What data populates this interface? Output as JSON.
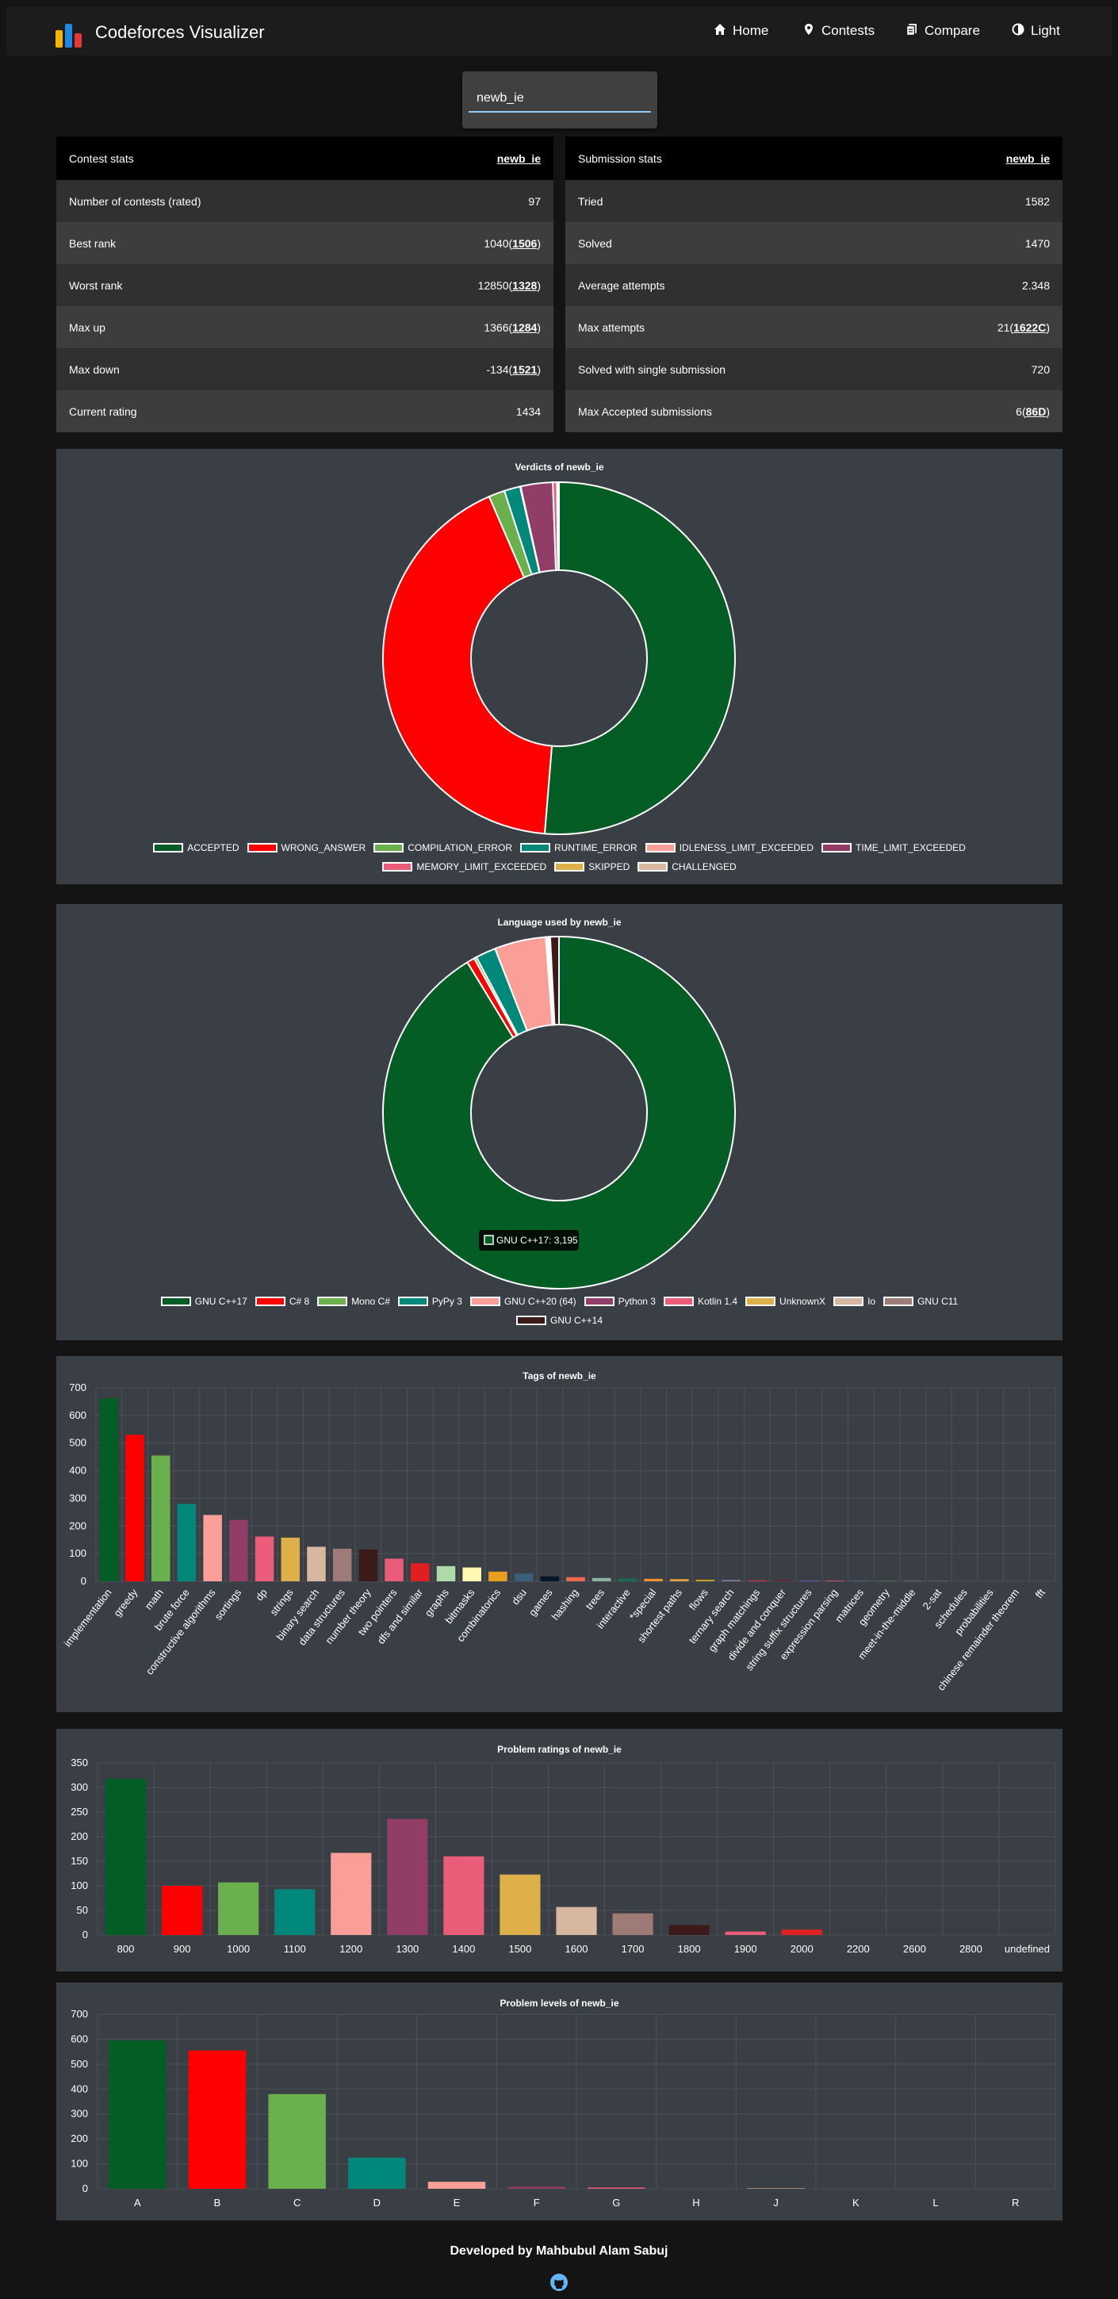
{
  "app": {
    "title": "Codeforces Visualizer"
  },
  "nav": [
    {
      "label": "Home",
      "icon": "home-icon"
    },
    {
      "label": "Contests",
      "icon": "map-pin-icon"
    },
    {
      "label": "Compare",
      "icon": "copy-icon"
    },
    {
      "label": "Light",
      "icon": "contrast-icon"
    }
  ],
  "search": {
    "value": "newb_ie"
  },
  "contest_stats": {
    "title": "Contest stats",
    "user": "newb_ie",
    "rows": [
      {
        "label": "Number of contests (rated)",
        "value": "97"
      },
      {
        "label": "Best rank",
        "value": "1040",
        "ref": "1506"
      },
      {
        "label": "Worst rank",
        "value": "12850",
        "ref": "1328"
      },
      {
        "label": "Max up",
        "value": "1366",
        "ref": "1284"
      },
      {
        "label": "Max down",
        "value": "-134",
        "ref": "1521"
      },
      {
        "label": "Current rating",
        "value": "1434"
      }
    ]
  },
  "submission_stats": {
    "title": "Submission stats",
    "user": "newb_ie",
    "rows": [
      {
        "label": "Tried",
        "value": "1582"
      },
      {
        "label": "Solved",
        "value": "1470"
      },
      {
        "label": "Average attempts",
        "value": "2.348"
      },
      {
        "label": "Max attempts",
        "value": "21",
        "ref": "1622C"
      },
      {
        "label": "Solved with single submission",
        "value": "720"
      },
      {
        "label": "Max Accepted submissions",
        "value": "6",
        "ref": "86D"
      }
    ]
  },
  "colors": {
    "green": "#045d24",
    "red": "#ff0000",
    "lightgreen": "#6ab04c",
    "teal": "#00897b",
    "salmon": "#fa9f98",
    "plum": "#913d67",
    "pink": "#ea5c77",
    "gold": "#ddb04a",
    "tan": "#d8b7a0",
    "mauve": "#9e7b76",
    "darkbrown": "#3d1a1a"
  },
  "verdicts_chart": {
    "type": "pie",
    "title": "Verdicts of newb_ie",
    "labels": [
      "ACCEPTED",
      "WRONG_ANSWER",
      "COMPILATION_ERROR",
      "RUNTIME_ERROR",
      "IDLENESS_LIMIT_EXCEEDED",
      "TIME_LIMIT_EXCEEDED",
      "MEMORY_LIMIT_EXCEEDED",
      "SKIPPED",
      "CHALLENGED"
    ],
    "values": [
      1920,
      1580,
      55,
      55,
      2,
      110,
      14,
      2,
      5
    ],
    "colors": [
      "#045d24",
      "#ff0000",
      "#6ab04c",
      "#00897b",
      "#fa9f98",
      "#913d67",
      "#ea5c77",
      "#ddb04a",
      "#d8b7a0"
    ]
  },
  "language_chart": {
    "type": "pie",
    "title": "Language used by newb_ie",
    "labels": [
      "GNU C++17",
      "C# 8",
      "Mono C#",
      "PyPy 3",
      "GNU C++20 (64)",
      "Python 3",
      "Kotlin 1.4",
      "UnknownX",
      "Io",
      "GNU C11",
      "GNU C++14"
    ],
    "values": [
      3195,
      25,
      8,
      65,
      165,
      4,
      3,
      2,
      2,
      3,
      28
    ],
    "colors": [
      "#045d24",
      "#ff0000",
      "#6ab04c",
      "#00897b",
      "#fa9f98",
      "#913d67",
      "#ea5c77",
      "#ddb04a",
      "#d8b7a0",
      "#9e7b76",
      "#3d1a1a"
    ],
    "tooltip": "GNU C++17: 3,195"
  },
  "tags_chart": {
    "type": "bar",
    "title": "Tags of newb_ie",
    "categories": [
      "implementation",
      "greedy",
      "math",
      "brute force",
      "constructive algorithms",
      "sortings",
      "dp",
      "strings",
      "binary search",
      "data structures",
      "number theory",
      "two pointers",
      "dfs and similar",
      "graphs",
      "bitmasks",
      "combinatorics",
      "dsu",
      "games",
      "hashing",
      "trees",
      "interactive",
      "*special",
      "shortest paths",
      "flows",
      "ternary search",
      "graph matchings",
      "divide and conquer",
      "string suffix structures",
      "expression parsing",
      "matrices",
      "geometry",
      "meet-in-the-middle",
      "2-sat",
      "schedules",
      "probabilities",
      "chinese remainder theorem",
      "fft"
    ],
    "values": [
      662,
      530,
      455,
      280,
      240,
      222,
      162,
      158,
      125,
      118,
      115,
      82,
      65,
      55,
      50,
      35,
      28,
      18,
      15,
      12,
      10,
      9,
      8,
      6,
      5,
      4,
      4,
      3,
      3,
      2,
      2,
      2,
      1,
      0,
      0,
      0,
      0
    ],
    "colors": [
      "#045d24",
      "#ff0000",
      "#6ab04c",
      "#00897b",
      "#fa9f98",
      "#913d67",
      "#ea5c77",
      "#ddb04a",
      "#d8b7a0",
      "#9e7b76",
      "#3d1a1a",
      "#ea5c77",
      "#e02020",
      "#aed9a8",
      "#fff8b0",
      "#e8a020",
      "#3a5f7a",
      "#06162a",
      "#f06a50",
      "#8fb0a0",
      "#1a6a50",
      "#f09030",
      "#e8a040",
      "#c0a020",
      "#7a7a9a",
      "#c03050",
      "#6a2030",
      "#7050b0",
      "#c05070",
      "#5070a0",
      "#508050",
      "#907060",
      "#70a070",
      "#a05050",
      "#607080",
      "#8060a0",
      "#40a0a0"
    ],
    "ylim": [
      0,
      700
    ],
    "yticks": [
      "0",
      "100",
      "200",
      "300",
      "400",
      "500",
      "600",
      "700"
    ]
  },
  "ratings_chart": {
    "type": "bar",
    "title": "Problem ratings of newb_ie",
    "categories": [
      "800",
      "900",
      "1000",
      "1100",
      "1200",
      "1300",
      "1400",
      "1500",
      "1600",
      "1700",
      "1800",
      "1900",
      "2000",
      "2200",
      "2600",
      "2800",
      "undefined"
    ],
    "values": [
      318,
      100,
      107,
      93,
      167,
      236,
      160,
      123,
      57,
      44,
      20,
      7,
      11,
      0,
      0,
      0,
      0
    ],
    "colors": [
      "#045d24",
      "#ff0000",
      "#6ab04c",
      "#00897b",
      "#fa9f98",
      "#913d67",
      "#ea5c77",
      "#ddb04a",
      "#d8b7a0",
      "#9e7b76",
      "#3d1a1a",
      "#ea5c77",
      "#e02020",
      "#aed9a8",
      "#fff8b0",
      "#e8a020",
      "#3a5f7a"
    ],
    "ylim": [
      0,
      350
    ],
    "yticks": [
      "0",
      "50",
      "100",
      "150",
      "200",
      "250",
      "300",
      "350"
    ]
  },
  "levels_chart": {
    "type": "bar",
    "title": "Problem levels of newb_ie",
    "categories": [
      "A",
      "B",
      "C",
      "D",
      "E",
      "F",
      "G",
      "H",
      "J",
      "K",
      "L",
      "R"
    ],
    "values": [
      595,
      555,
      380,
      125,
      28,
      8,
      5,
      0,
      2,
      0,
      0,
      0
    ],
    "colors": [
      "#045d24",
      "#ff0000",
      "#6ab04c",
      "#00897b",
      "#fa9f98",
      "#913d67",
      "#ea5c77",
      "#ddb04a",
      "#d8b7a0",
      "#9e7b76",
      "#3d1a1a",
      "#ea5c77"
    ],
    "ylim": [
      0,
      700
    ],
    "yticks": [
      "0",
      "100",
      "200",
      "300",
      "400",
      "500",
      "600",
      "700"
    ]
  },
  "footer": {
    "text": "Developed by Mahbubul Alam Sabuj",
    "icon": "github-icon"
  }
}
